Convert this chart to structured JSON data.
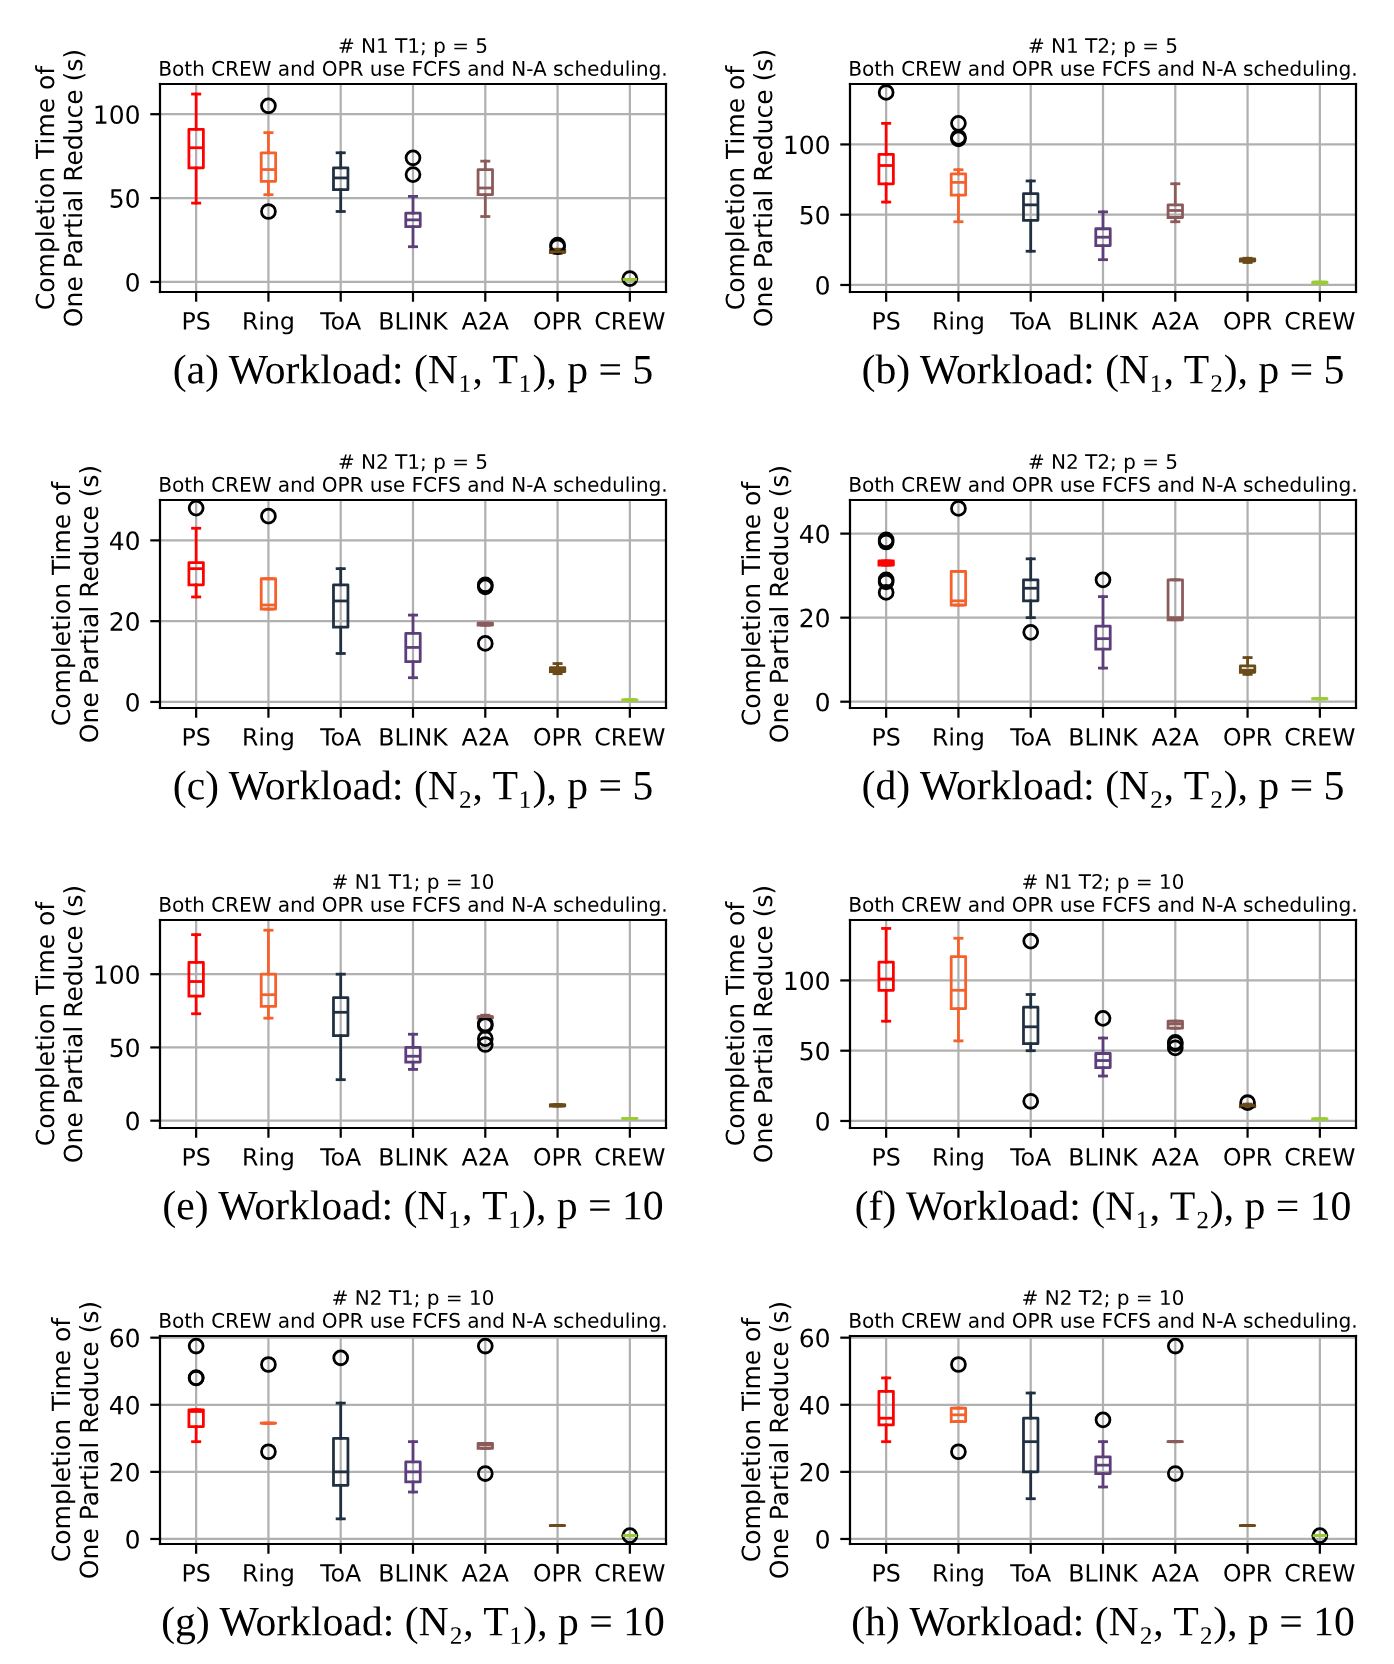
{
  "chart_data": [
    {
      "type": "box",
      "title": "# N1 T1; p = 5",
      "subtitle": "Both CREW and OPR use FCFS and N-A scheduling.",
      "ylabel": "Completion Time of\nOne Partial Reduce (s)",
      "categories": [
        "PS",
        "Ring",
        "ToA",
        "BLINK",
        "A2A",
        "OPR",
        "CREW"
      ],
      "colors": [
        "#ff0000",
        "#f4612a",
        "#203040",
        "#5d3e7a",
        "#8b5a5a",
        "#6b4a1a",
        "#9acd32"
      ],
      "ylim": [
        -6,
        118
      ],
      "yticks": [
        0,
        50,
        100
      ],
      "grid": true,
      "annotations": [
        "(a) Workload: (N₁, T₁), p = 5"
      ],
      "boxes": [
        {
          "low": 47,
          "q1": 68,
          "median": 80,
          "q3": 91,
          "high": 112
        },
        {
          "low": 52,
          "q1": 60,
          "median": 67,
          "q3": 77,
          "high": 89,
          "outliers": [
            105,
            42
          ]
        },
        {
          "low": 42,
          "q1": 55,
          "median": 62,
          "q3": 68,
          "high": 77
        },
        {
          "low": 21,
          "q1": 33,
          "median": 37,
          "q3": 41,
          "high": 51,
          "outliers": [
            64,
            74
          ]
        },
        {
          "low": 39,
          "q1": 52,
          "median": 56,
          "q3": 67,
          "high": 72
        },
        {
          "low": 17,
          "q1": 17.5,
          "median": 18,
          "q3": 19,
          "high": 19.5,
          "outliers": [
            22,
            21
          ]
        },
        {
          "low": 1.5,
          "q1": 1.5,
          "median": 1.5,
          "q3": 1.5,
          "high": 1.5,
          "outliers": [
            2
          ]
        }
      ]
    },
    {
      "type": "box",
      "title": "# N1 T2; p = 5",
      "subtitle": "Both CREW and OPR use FCFS and N-A scheduling.",
      "ylabel": "Completion Time of\nOne Partial Reduce (s)",
      "categories": [
        "PS",
        "Ring",
        "ToA",
        "BLINK",
        "A2A",
        "OPR",
        "CREW"
      ],
      "colors": [
        "#ff0000",
        "#f4612a",
        "#203040",
        "#5d3e7a",
        "#8b5a5a",
        "#6b4a1a",
        "#9acd32"
      ],
      "ylim": [
        -5,
        143
      ],
      "yticks": [
        0,
        50,
        100
      ],
      "grid": true,
      "annotations": [
        "(b) Workload: (N₁, T₂), p = 5"
      ],
      "boxes": [
        {
          "low": 59,
          "q1": 72,
          "median": 85,
          "q3": 93,
          "high": 115,
          "outliers": [
            137
          ]
        },
        {
          "low": 45,
          "q1": 64,
          "median": 73,
          "q3": 79,
          "high": 82,
          "outliers": [
            115,
            104,
            105
          ]
        },
        {
          "low": 24,
          "q1": 46,
          "median": 57,
          "q3": 65,
          "high": 74
        },
        {
          "low": 18,
          "q1": 28,
          "median": 34,
          "q3": 40,
          "high": 52
        },
        {
          "low": 45,
          "q1": 48,
          "median": 53,
          "q3": 57,
          "high": 72
        },
        {
          "low": 16,
          "q1": 17,
          "median": 17.5,
          "q3": 18.5,
          "high": 19
        },
        {
          "low": 1,
          "q1": 1.5,
          "median": 2,
          "q3": 2,
          "high": 2
        }
      ]
    },
    {
      "type": "box",
      "title": "# N2 T1; p = 5",
      "subtitle": "Both CREW and OPR use FCFS and N-A scheduling.",
      "ylabel": "Completion Time of\nOne Partial Reduce (s)",
      "categories": [
        "PS",
        "Ring",
        "ToA",
        "BLINK",
        "A2A",
        "OPR",
        "CREW"
      ],
      "colors": [
        "#ff0000",
        "#f4612a",
        "#203040",
        "#5d3e7a",
        "#8b5a5a",
        "#6b4a1a",
        "#9acd32"
      ],
      "ylim": [
        -1.5,
        50
      ],
      "yticks": [
        0,
        20,
        40
      ],
      "grid": true,
      "annotations": [
        "(c) Workload: (N₂, T₁), p = 5"
      ],
      "boxes": [
        {
          "low": 26,
          "q1": 29,
          "median": 33,
          "q3": 34.5,
          "high": 43,
          "outliers": [
            48
          ]
        },
        {
          "low": 23,
          "q1": 23,
          "median": 24,
          "q3": 30.5,
          "high": 30.5,
          "outliers": [
            46
          ]
        },
        {
          "low": 12,
          "q1": 18.5,
          "median": 25,
          "q3": 29,
          "high": 33
        },
        {
          "low": 6,
          "q1": 10,
          "median": 13.5,
          "q3": 17,
          "high": 21.5
        },
        {
          "low": 19,
          "q1": 19,
          "median": 19.2,
          "q3": 19.5,
          "high": 19.5,
          "outliers": [
            29,
            28.5,
            14.5
          ]
        },
        {
          "low": 7,
          "q1": 7.5,
          "median": 8,
          "q3": 8.5,
          "high": 9.5
        },
        {
          "low": 0.5,
          "q1": 0.5,
          "median": 0.5,
          "q3": 0.5,
          "high": 0.5
        }
      ]
    },
    {
      "type": "box",
      "title": "# N2 T2; p = 5",
      "subtitle": "Both CREW and OPR use FCFS and N-A scheduling.",
      "ylabel": "Completion Time of\nOne Partial Reduce (s)",
      "categories": [
        "PS",
        "Ring",
        "ToA",
        "BLINK",
        "A2A",
        "OPR",
        "CREW"
      ],
      "colors": [
        "#ff0000",
        "#f4612a",
        "#203040",
        "#5d3e7a",
        "#8b5a5a",
        "#6b4a1a",
        "#9acd32"
      ],
      "ylim": [
        -1.5,
        48
      ],
      "yticks": [
        0,
        20,
        40
      ],
      "grid": true,
      "annotations": [
        "(d) Workload: (N₂, T₂), p = 5"
      ],
      "boxes": [
        {
          "low": 32.5,
          "q1": 32.5,
          "median": 33,
          "q3": 33.5,
          "high": 33.5,
          "outliers": [
            38.5,
            38,
            29,
            28.5,
            26
          ]
        },
        {
          "low": 23,
          "q1": 23,
          "median": 24,
          "q3": 31,
          "high": 31,
          "outliers": [
            46
          ]
        },
        {
          "low": 20,
          "q1": 24,
          "median": 27,
          "q3": 29,
          "high": 34,
          "outliers": [
            16.5
          ]
        },
        {
          "low": 8,
          "q1": 12.5,
          "median": 15,
          "q3": 18,
          "high": 25,
          "outliers": [
            29
          ]
        },
        {
          "low": 19.5,
          "q1": 19.5,
          "median": 20,
          "q3": 29,
          "high": 29
        },
        {
          "low": 6.5,
          "q1": 7,
          "median": 7.5,
          "q3": 8.5,
          "high": 10.5
        },
        {
          "low": 0.7,
          "q1": 0.7,
          "median": 0.7,
          "q3": 0.7,
          "high": 0.7
        }
      ]
    },
    {
      "type": "box",
      "title": "# N1 T1; p = 10",
      "subtitle": "Both CREW and OPR use FCFS and N-A scheduling.",
      "ylabel": "Completion Time of\nOne Partial Reduce (s)",
      "categories": [
        "PS",
        "Ring",
        "ToA",
        "BLINK",
        "A2A",
        "OPR",
        "CREW"
      ],
      "colors": [
        "#ff0000",
        "#f4612a",
        "#203040",
        "#5d3e7a",
        "#8b5a5a",
        "#6b4a1a",
        "#9acd32"
      ],
      "ylim": [
        -5,
        137
      ],
      "yticks": [
        0,
        50,
        100
      ],
      "grid": true,
      "annotations": [
        "(e) Workload: (N₁, T₁), p = 10"
      ],
      "boxes": [
        {
          "low": 73,
          "q1": 85,
          "median": 95,
          "q3": 108,
          "high": 127
        },
        {
          "low": 70,
          "q1": 78,
          "median": 86,
          "q3": 100,
          "high": 130
        },
        {
          "low": 28,
          "q1": 58,
          "median": 74,
          "q3": 84,
          "high": 100
        },
        {
          "low": 35,
          "q1": 40,
          "median": 44,
          "q3": 50,
          "high": 59
        },
        {
          "low": 70,
          "q1": 70,
          "median": 71,
          "q3": 71,
          "high": 72,
          "outliers": [
            66,
            65,
            56,
            52
          ]
        },
        {
          "low": 10,
          "q1": 10,
          "median": 10.5,
          "q3": 11,
          "high": 11
        },
        {
          "low": 1.5,
          "q1": 1.5,
          "median": 1.5,
          "q3": 1.5,
          "high": 1.5
        }
      ]
    },
    {
      "type": "box",
      "title": "# N1 T2; p = 10",
      "subtitle": "Both CREW and OPR use FCFS and N-A scheduling.",
      "ylabel": "Completion Time of\nOne Partial Reduce (s)",
      "categories": [
        "PS",
        "Ring",
        "ToA",
        "BLINK",
        "A2A",
        "OPR",
        "CREW"
      ],
      "colors": [
        "#ff0000",
        "#f4612a",
        "#203040",
        "#5d3e7a",
        "#8b5a5a",
        "#6b4a1a",
        "#9acd32"
      ],
      "ylim": [
        -5,
        143
      ],
      "yticks": [
        0,
        50,
        100
      ],
      "grid": true,
      "annotations": [
        "(f) Workload: (N₁, T₂), p = 10"
      ],
      "boxes": [
        {
          "low": 71,
          "q1": 93,
          "median": 101,
          "q3": 113,
          "high": 137
        },
        {
          "low": 57,
          "q1": 80,
          "median": 93,
          "q3": 117,
          "high": 130
        },
        {
          "low": 50,
          "q1": 55,
          "median": 67,
          "q3": 81,
          "high": 90,
          "outliers": [
            128,
            14
          ]
        },
        {
          "low": 32,
          "q1": 38,
          "median": 43,
          "q3": 48,
          "high": 59,
          "outliers": [
            73
          ]
        },
        {
          "low": 66,
          "q1": 66,
          "median": 69,
          "q3": 71,
          "high": 71,
          "outliers": [
            56,
            55,
            52
          ]
        },
        {
          "low": 10,
          "q1": 10,
          "median": 11,
          "q3": 11,
          "high": 12,
          "outliers": [
            13
          ]
        },
        {
          "low": 1.5,
          "q1": 1.5,
          "median": 1.5,
          "q3": 1.5,
          "high": 1.5
        }
      ]
    },
    {
      "type": "box",
      "title": "# N2 T1; p = 10",
      "subtitle": "Both CREW and OPR use FCFS and N-A scheduling.",
      "ylabel": "Completion Time of\nOne Partial Reduce (s)",
      "categories": [
        "PS",
        "Ring",
        "ToA",
        "BLINK",
        "A2A",
        "OPR",
        "CREW"
      ],
      "colors": [
        "#ff0000",
        "#f4612a",
        "#203040",
        "#5d3e7a",
        "#8b5a5a",
        "#6b4a1a",
        "#9acd32"
      ],
      "ylim": [
        -1.5,
        60.5
      ],
      "yticks": [
        0,
        20,
        40,
        60
      ],
      "grid": true,
      "annotations": [
        "(g) Workload: (N₂, T₁), p = 10"
      ],
      "boxes": [
        {
          "low": 29,
          "q1": 33.5,
          "median": 38,
          "q3": 38.5,
          "high": 38.5,
          "outliers": [
            57.5,
            48,
            48
          ]
        },
        {
          "low": 34.5,
          "q1": 34.5,
          "median": 34.5,
          "q3": 34.5,
          "high": 34.5,
          "outliers": [
            52,
            26
          ]
        },
        {
          "low": 6,
          "q1": 16,
          "median": 20,
          "q3": 30,
          "high": 40.5,
          "outliers": [
            54
          ]
        },
        {
          "low": 14,
          "q1": 17,
          "median": 20,
          "q3": 23,
          "high": 29
        },
        {
          "low": 27,
          "q1": 27,
          "median": 28,
          "q3": 28.5,
          "high": 28.5,
          "outliers": [
            57.5,
            19.5
          ]
        },
        {
          "low": 4,
          "q1": 4,
          "median": 4,
          "q3": 4,
          "high": 4
        },
        {
          "low": 1,
          "q1": 1,
          "median": 1,
          "q3": 1,
          "high": 1,
          "outliers": [
            1
          ]
        }
      ]
    },
    {
      "type": "box",
      "title": "# N2 T2; p = 10",
      "subtitle": "Both CREW and OPR use FCFS and N-A scheduling.",
      "ylabel": "Completion Time of\nOne Partial Reduce (s)",
      "categories": [
        "PS",
        "Ring",
        "ToA",
        "BLINK",
        "A2A",
        "OPR",
        "CREW"
      ],
      "colors": [
        "#ff0000",
        "#f4612a",
        "#203040",
        "#5d3e7a",
        "#8b5a5a",
        "#6b4a1a",
        "#9acd32"
      ],
      "ylim": [
        -1.5,
        60.5
      ],
      "yticks": [
        0,
        20,
        40,
        60
      ],
      "grid": true,
      "annotations": [
        "(h) Workload: (N₂, T₂), p = 10"
      ],
      "boxes": [
        {
          "low": 29,
          "q1": 34,
          "median": 36,
          "q3": 44,
          "high": 48
        },
        {
          "low": 35,
          "q1": 35,
          "median": 37,
          "q3": 39,
          "high": 39,
          "outliers": [
            52,
            26
          ]
        },
        {
          "low": 12,
          "q1": 20,
          "median": 29,
          "q3": 36,
          "high": 43.5
        },
        {
          "low": 15.5,
          "q1": 19.5,
          "median": 22,
          "q3": 24.5,
          "high": 29,
          "outliers": [
            35.5
          ]
        },
        {
          "low": 29,
          "q1": 29,
          "median": 29,
          "q3": 29,
          "high": 29,
          "outliers": [
            57.5,
            19.5
          ]
        },
        {
          "low": 4,
          "q1": 4,
          "median": 4,
          "q3": 4,
          "high": 4
        },
        {
          "low": 1,
          "q1": 1,
          "median": 1,
          "q3": 1,
          "high": 1,
          "outliers": [
            1
          ]
        }
      ]
    }
  ]
}
